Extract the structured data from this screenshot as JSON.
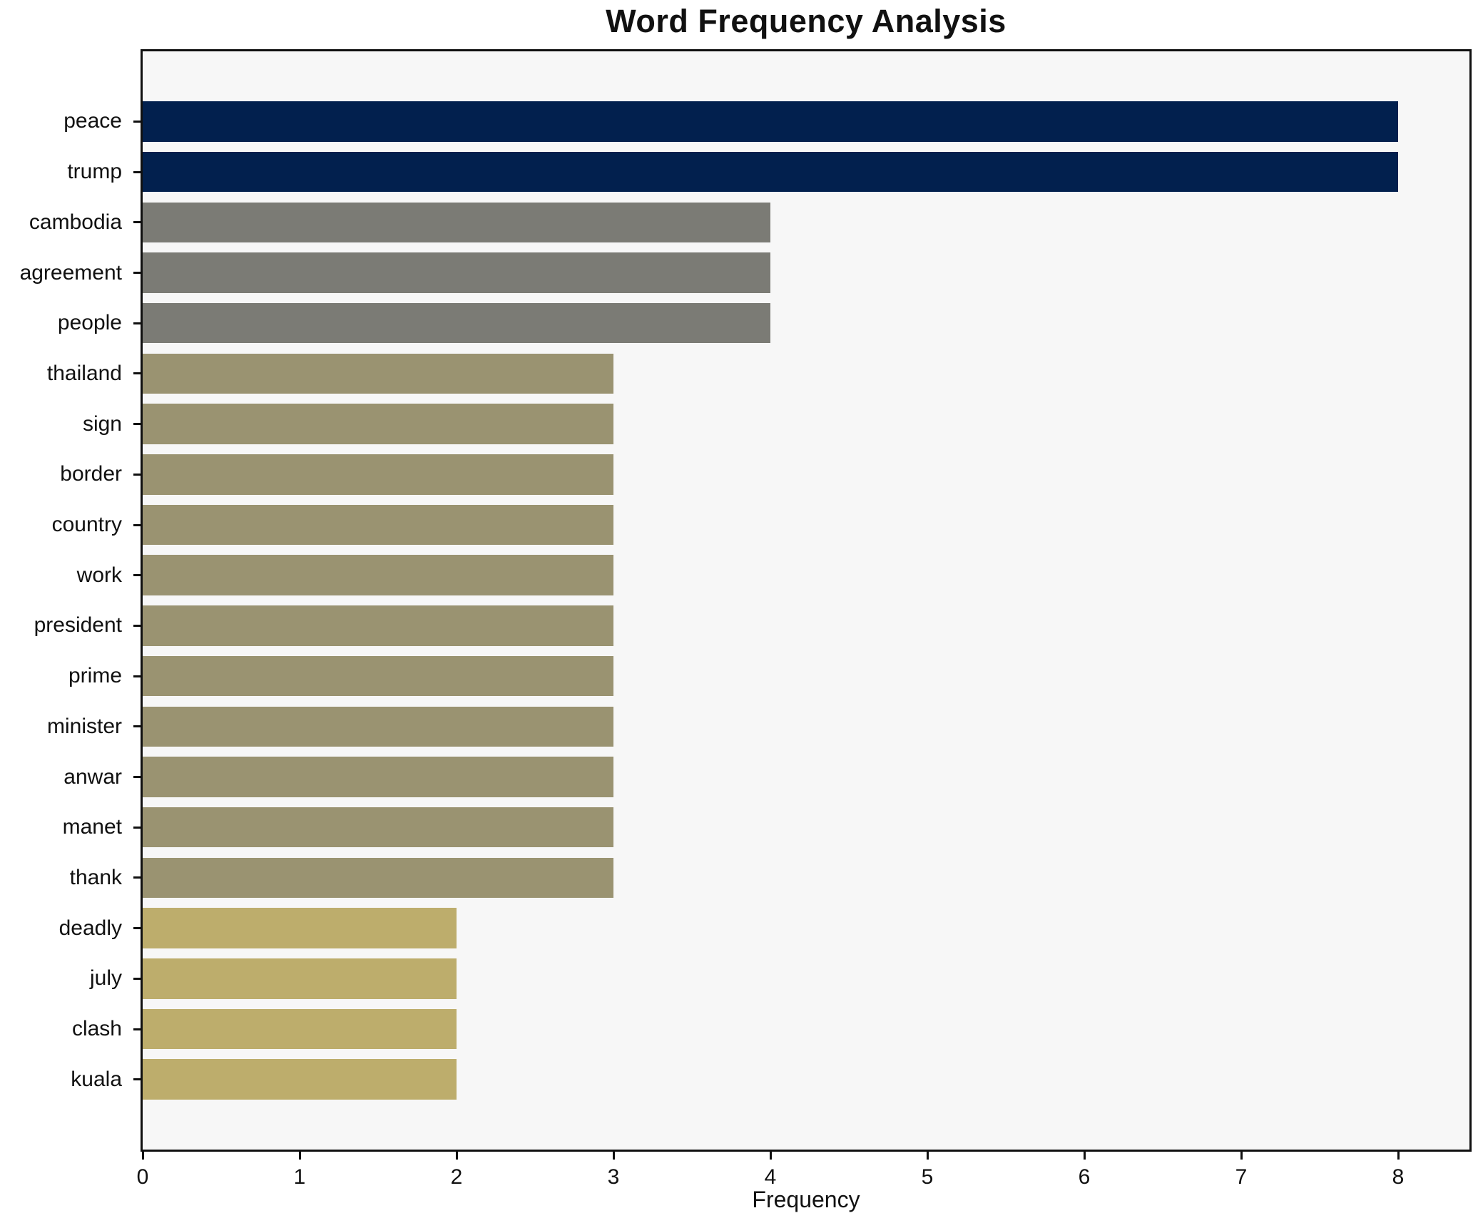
{
  "title": "Word Frequency Analysis",
  "chart_data": {
    "type": "bar",
    "orientation": "horizontal",
    "title": "Word Frequency Analysis",
    "xlabel": "Frequency",
    "ylabel": "",
    "categories": [
      "peace",
      "trump",
      "cambodia",
      "agreement",
      "people",
      "thailand",
      "sign",
      "border",
      "country",
      "work",
      "president",
      "prime",
      "minister",
      "anwar",
      "manet",
      "thank",
      "deadly",
      "july",
      "clash",
      "kuala"
    ],
    "values": [
      8,
      8,
      4,
      4,
      4,
      3,
      3,
      3,
      3,
      3,
      3,
      3,
      3,
      3,
      3,
      3,
      2,
      2,
      2,
      2
    ],
    "bar_colors": [
      "#02204e",
      "#02204e",
      "#7b7b75",
      "#7b7b75",
      "#7b7b75",
      "#9a9371",
      "#9a9371",
      "#9a9371",
      "#9a9371",
      "#9a9371",
      "#9a9371",
      "#9a9371",
      "#9a9371",
      "#9a9371",
      "#9a9371",
      "#9a9371",
      "#bdad6c",
      "#bdad6c",
      "#bdad6c",
      "#bdad6c"
    ],
    "xticks": [
      "0",
      "1",
      "2",
      "3",
      "4",
      "5",
      "6",
      "7",
      "8"
    ],
    "xlim": [
      0,
      8.45
    ],
    "grid": false,
    "legend": null,
    "plot_background": "#f7f7f7",
    "figure_background": "#ffffff",
    "spine_color": "#101010",
    "value_color_tiers": {
      "8": "#02204e",
      "4": "#7b7b75",
      "3": "#9a9371",
      "2": "#bdad6c"
    }
  }
}
